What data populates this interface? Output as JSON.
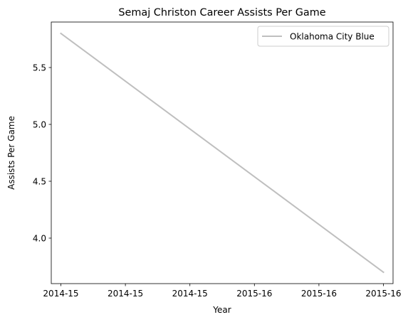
{
  "chart_data": {
    "type": "line",
    "title": "Semaj Christon Career Assists Per Game",
    "xlabel": "Year",
    "ylabel": "Assists Per Game",
    "x_tick_labels": [
      "2014-15",
      "2014-15",
      "2014-15",
      "2015-16",
      "2015-16",
      "2015-16"
    ],
    "x_range": [
      0,
      1
    ],
    "y_ticks": [
      4.0,
      4.5,
      5.0,
      5.5
    ],
    "y_tick_labels": [
      "4.0",
      "4.5",
      "5.0",
      "5.5"
    ],
    "ylim": [
      3.6,
      5.9
    ],
    "categories": [
      "2014-15",
      "2015-16"
    ],
    "series": [
      {
        "name": "Oklahoma City Blue",
        "x": [
          0,
          1
        ],
        "values": [
          5.8,
          3.7
        ],
        "color": "#bfbfbf"
      }
    ],
    "legend_position": "top-right",
    "grid": false
  }
}
